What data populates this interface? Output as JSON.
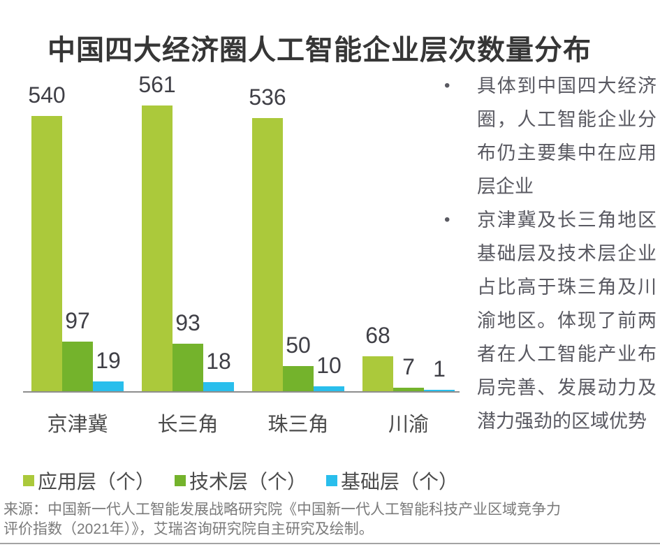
{
  "page": {
    "title": "中国四大经济圈人工智能企业层次数量分布",
    "source_line1": "来源：中国新一代人工智能发展战略研究院《中国新一代人工智能科技产业区域竞争力",
    "source_line2": "评价指数（2021年）》，艾瑞咨询研究院自主研究及绘制。"
  },
  "chart_data": {
    "type": "bar",
    "title": "中国四大经济圈人工智能企业层次数量分布",
    "categories": [
      "京津冀",
      "长三角",
      "珠三角",
      "川渝"
    ],
    "series": [
      {
        "name": "应用层（个）",
        "color": "#abc93b",
        "values": [
          540,
          561,
          536,
          68
        ]
      },
      {
        "name": "技术层（个）",
        "color": "#74b32c",
        "values": [
          97,
          93,
          50,
          7
        ]
      },
      {
        "name": "基础层（个）",
        "color": "#29beec",
        "values": [
          19,
          18,
          10,
          1
        ]
      }
    ],
    "ylim": [
      0,
      561
    ],
    "value_labels_shown": true,
    "grid": false,
    "legend_position": "bottom",
    "xlabel": "",
    "ylabel": ""
  },
  "insights": [
    "具体到中国四大经济圈，人工智能企业分布仍主要集中在应用层企业",
    "京津冀及长三角地区基础层及技术层企业占比高于珠三角及川渝地区。体现了前两者在人工智能产业布局完善、发展动力及潜力强劲的区域优势"
  ],
  "colors": {
    "application_layer": "#abc93b",
    "technology_layer": "#74b32c",
    "foundation_layer": "#29beec",
    "axis_line": "#8e8e8e",
    "title_text": "#363636",
    "value_label_text": "#3f3f46",
    "body_text": "#595961",
    "source_text": "#7a7a7a"
  }
}
